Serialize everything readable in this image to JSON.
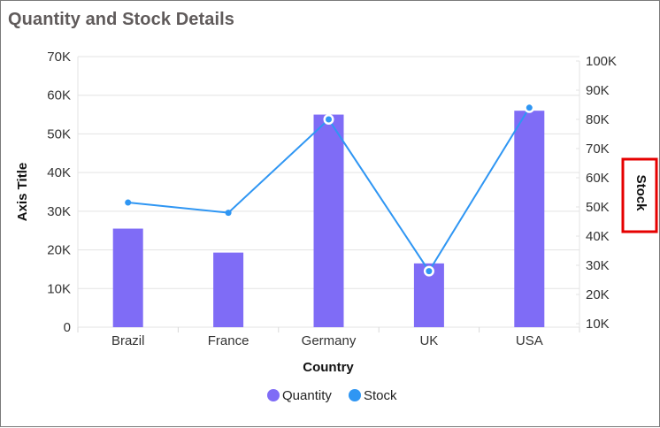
{
  "window": {
    "title": "Quantity and Stock Details"
  },
  "colors": {
    "quantity": "#7f6cf6",
    "stock": "#2f96f3",
    "gridline": "#e3e3e3",
    "highlight_box": "#e60000",
    "title": "#605b5b"
  },
  "chart_data": {
    "type": "bar+line",
    "title": "Quantity and Stock Details",
    "xlabel": "Country",
    "ylabel": "Axis Title",
    "y2label": "Stock",
    "categories": [
      "Brazil",
      "France",
      "Germany",
      "UK",
      "USA"
    ],
    "series": [
      {
        "name": "Quantity",
        "type": "bar",
        "axis": "left",
        "values": [
          25500,
          19300,
          55000,
          16500,
          56000
        ]
      },
      {
        "name": "Stock",
        "type": "line",
        "axis": "right",
        "values": [
          51500,
          48000,
          80000,
          28000,
          84000
        ]
      }
    ],
    "ylim": [
      0,
      70000
    ],
    "y_ticks": [
      "0",
      "10K",
      "20K",
      "30K",
      "40K",
      "50K",
      "60K",
      "70K"
    ],
    "y2lim": [
      10000,
      100000
    ],
    "y2_ticks": [
      "10K",
      "20K",
      "30K",
      "40K",
      "50K",
      "60K",
      "70K",
      "80K",
      "90K",
      "100K"
    ],
    "grid": true,
    "legend_position": "bottom",
    "legend": [
      "Quantity",
      "Stock"
    ],
    "annotations": [
      "Red highlight box around right axis title 'Stock'"
    ]
  }
}
